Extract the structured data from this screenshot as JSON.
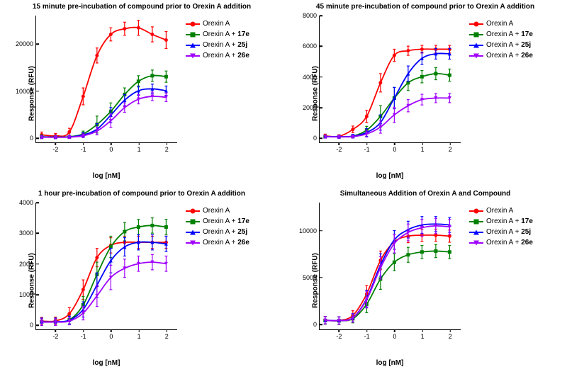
{
  "figure": {
    "background_color": "#ffffff",
    "axis_color": "#000000",
    "label_fontsize": 10,
    "tick_fontsize": 9,
    "title_fontsize": 10,
    "line_width": 1.8,
    "marker_size": 5,
    "cap_width": 4,
    "xlabel": "log [nM]",
    "ylabel": "Response (RFU)",
    "series_style": {
      "orexinA": {
        "color": "#ff0000",
        "marker": "circle",
        "label_html": "Orexin A"
      },
      "c17e": {
        "color": "#008000",
        "marker": "square",
        "label_html": "Orexin A + <b>17e</b>"
      },
      "c25j": {
        "color": "#0000ff",
        "marker": "tri-up",
        "label_html": "Orexin A + <b>25j</b>"
      },
      "c26e": {
        "color": "#a000ff",
        "marker": "tri-down",
        "label_html": "Orexin A + <b>26e</b>"
      }
    },
    "x_ticks": [
      -2,
      -1,
      0,
      1,
      2
    ],
    "x_domain": [
      -2.7,
      2.4
    ],
    "legend_order": [
      "orexinA",
      "c17e",
      "c25j",
      "c26e"
    ]
  },
  "panels": [
    {
      "id": "p15",
      "title": "15 minute pre-incubation of compound prior to Orexin A addition",
      "y_ticks": [
        0,
        10000,
        20000
      ],
      "y_domain": [
        -1000,
        26000
      ],
      "data": {
        "orexinA": {
          "x": [
            -2.5,
            -2,
            -1.5,
            -1,
            -0.5,
            0,
            0.5,
            1,
            1.5,
            2
          ],
          "y": [
            600,
            400,
            1200,
            8800,
            17500,
            22000,
            23200,
            23400,
            22000,
            20800
          ],
          "err": [
            600,
            500,
            800,
            1800,
            1600,
            1400,
            1400,
            1600,
            1600,
            1800
          ]
        },
        "c17e": {
          "x": [
            -2.5,
            -2,
            -1.5,
            -1,
            -0.5,
            0,
            0.5,
            1,
            1.5,
            2
          ],
          "y": [
            200,
            150,
            200,
            800,
            2800,
            5600,
            9200,
            12000,
            13200,
            13000
          ],
          "err": [
            400,
            300,
            300,
            600,
            1800,
            1800,
            1400,
            1200,
            1200,
            1200
          ]
        },
        "c25j": {
          "x": [
            -2.5,
            -2,
            -1.5,
            -1,
            -0.5,
            0,
            0.5,
            1,
            1.5,
            2
          ],
          "y": [
            150,
            100,
            150,
            600,
            1800,
            4800,
            8000,
            10000,
            10400,
            10000
          ],
          "err": [
            300,
            300,
            300,
            500,
            1200,
            1600,
            1200,
            1000,
            1000,
            1000
          ]
        },
        "c26e": {
          "x": [
            -2.5,
            -2,
            -1.5,
            -1,
            -0.5,
            0,
            0.5,
            1,
            1.5,
            2
          ],
          "y": [
            100,
            100,
            120,
            400,
            1400,
            3600,
            6400,
            8200,
            8800,
            8600
          ],
          "err": [
            300,
            300,
            300,
            400,
            800,
            1400,
            1000,
            1000,
            900,
            900
          ]
        }
      }
    },
    {
      "id": "p45",
      "title": "45 minute pre-incubation of compound prior to Orexin A addition",
      "y_ticks": [
        0,
        2000,
        4000,
        6000,
        8000
      ],
      "y_domain": [
        -300,
        8000
      ],
      "data": {
        "orexinA": {
          "x": [
            -2.5,
            -2,
            -1.5,
            -1,
            -0.5,
            0,
            0.5,
            1,
            1.5,
            2
          ],
          "y": [
            120,
            100,
            550,
            1400,
            3600,
            5400,
            5700,
            5800,
            5800,
            5800
          ],
          "err": [
            120,
            100,
            220,
            400,
            600,
            400,
            300,
            250,
            250,
            250
          ]
        },
        "c17e": {
          "x": [
            -2.5,
            -2,
            -1.5,
            -1,
            -0.5,
            0,
            0.5,
            1,
            1.5,
            2
          ],
          "y": [
            80,
            70,
            110,
            500,
            1400,
            2600,
            3600,
            4000,
            4200,
            4100
          ],
          "err": [
            100,
            100,
            100,
            250,
            700,
            700,
            500,
            400,
            400,
            400
          ]
        },
        "c25j": {
          "x": [
            -2.5,
            -2,
            -1.5,
            -1,
            -0.5,
            0,
            0.5,
            1,
            1.5,
            2
          ],
          "y": [
            80,
            70,
            100,
            350,
            1000,
            2600,
            4200,
            5200,
            5500,
            5500
          ],
          "err": [
            100,
            100,
            120,
            250,
            500,
            700,
            500,
            400,
            350,
            350
          ]
        },
        "c26e": {
          "x": [
            -2.5,
            -2,
            -1.5,
            -1,
            -0.5,
            0,
            0.5,
            1,
            1.5,
            2
          ],
          "y": [
            70,
            60,
            80,
            250,
            700,
            1500,
            2100,
            2500,
            2600,
            2600
          ],
          "err": [
            90,
            90,
            90,
            200,
            400,
            500,
            400,
            350,
            300,
            300
          ]
        }
      }
    },
    {
      "id": "p60",
      "title": "1 hour pre-incubation of compound prior to Orexin A addition",
      "y_ticks": [
        0,
        1000,
        2000,
        3000,
        4000
      ],
      "y_domain": [
        -150,
        4000
      ],
      "data": {
        "orexinA": {
          "x": [
            -2.5,
            -2,
            -1.5,
            -1,
            -0.5,
            0,
            0.5,
            1,
            1.5,
            2
          ],
          "y": [
            120,
            130,
            360,
            1150,
            2200,
            2600,
            2700,
            2700,
            2700,
            2700
          ],
          "err": [
            120,
            120,
            200,
            320,
            300,
            250,
            200,
            200,
            200,
            200
          ]
        },
        "c17e": {
          "x": [
            -2.5,
            -2,
            -1.5,
            -1,
            -0.5,
            0,
            0.5,
            1,
            1.5,
            2
          ],
          "y": [
            100,
            100,
            160,
            650,
            1650,
            2550,
            3050,
            3200,
            3250,
            3200
          ],
          "err": [
            120,
            120,
            130,
            280,
            400,
            350,
            300,
            250,
            250,
            250
          ]
        },
        "c25j": {
          "x": [
            -2.5,
            -2,
            -1.5,
            -1,
            -0.5,
            0,
            0.5,
            1,
            1.5,
            2
          ],
          "y": [
            100,
            100,
            150,
            500,
            1300,
            2100,
            2550,
            2700,
            2700,
            2650
          ],
          "err": [
            120,
            120,
            130,
            250,
            400,
            400,
            300,
            250,
            250,
            250
          ]
        },
        "c26e": {
          "x": [
            -2.5,
            -2,
            -1.5,
            -1,
            -0.5,
            0,
            0.5,
            1,
            1.5,
            2
          ],
          "y": [
            90,
            90,
            120,
            380,
            950,
            1550,
            1850,
            2000,
            2050,
            2000
          ],
          "err": [
            110,
            110,
            120,
            220,
            350,
            400,
            300,
            250,
            250,
            250
          ]
        }
      }
    },
    {
      "id": "psim",
      "title": "Simultaneous Addition of Orexin A and Compound",
      "y_ticks": [
        0,
        5000,
        10000
      ],
      "y_domain": [
        -600,
        13000
      ],
      "data": {
        "orexinA": {
          "x": [
            -2.5,
            -2,
            -1.5,
            -1,
            -0.5,
            0,
            0.5,
            1,
            1.5,
            2
          ],
          "y": [
            400,
            350,
            900,
            3200,
            6800,
            8800,
            9400,
            9500,
            9500,
            9400
          ],
          "err": [
            400,
            400,
            500,
            900,
            1000,
            800,
            700,
            650,
            650,
            650
          ]
        },
        "c17e": {
          "x": [
            -2.5,
            -2,
            -1.5,
            -1,
            -0.5,
            0,
            0.5,
            1,
            1.5,
            2
          ],
          "y": [
            350,
            320,
            550,
            2100,
            4800,
            6600,
            7400,
            7700,
            7800,
            7700
          ],
          "err": [
            400,
            400,
            450,
            900,
            1100,
            900,
            800,
            700,
            700,
            700
          ]
        },
        "c25j": {
          "x": [
            -2.5,
            -2,
            -1.5,
            -1,
            -0.5,
            0,
            0.5,
            1,
            1.5,
            2
          ],
          "y": [
            380,
            350,
            650,
            2700,
            6300,
            9000,
            10100,
            10600,
            10700,
            10600
          ],
          "err": [
            400,
            400,
            450,
            900,
            1200,
            1000,
            900,
            900,
            800,
            800
          ]
        },
        "c26e": {
          "x": [
            -2.5,
            -2,
            -1.5,
            -1,
            -0.5,
            0,
            0.5,
            1,
            1.5,
            2
          ],
          "y": [
            370,
            340,
            620,
            2600,
            6000,
            8600,
            9800,
            10300,
            10500,
            10400
          ],
          "err": [
            400,
            400,
            450,
            900,
            1200,
            1000,
            900,
            900,
            800,
            800
          ]
        }
      }
    }
  ]
}
